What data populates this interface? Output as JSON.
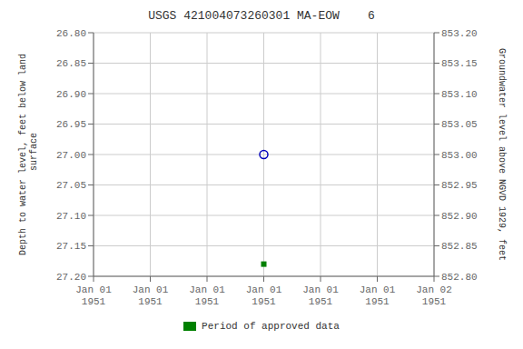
{
  "chart_data": {
    "type": "scatter",
    "title": "USGS 421004073260301 MA-EOW    6",
    "ylabel": "Depth to water level, feet below land\n surface",
    "y2label": "Groundwater level above NGVD 1929, feet",
    "categories": [
      "Jan 01\n1951",
      "Jan 01\n1951",
      "Jan 01\n1951",
      "Jan 01\n1951",
      "Jan 01\n1951",
      "Jan 01\n1951",
      "Jan 02\n1951"
    ],
    "series": [
      {
        "color": "#0000bb",
        "marker": "circle",
        "values": [
          null,
          null,
          null,
          27.0,
          null,
          null,
          null
        ]
      },
      {
        "name": "Period of approved data",
        "color": "#008000",
        "marker": "square",
        "values": [
          null,
          null,
          null,
          27.18,
          null,
          null,
          null
        ]
      }
    ],
    "ylim": [
      27.2,
      26.8
    ],
    "yticks": [
      {
        "value": 26.8,
        "label": "26.80"
      },
      {
        "value": 26.85,
        "label": "26.85"
      },
      {
        "value": 26.9,
        "label": "26.90"
      },
      {
        "value": 26.95,
        "label": "26.95"
      },
      {
        "value": 27.0,
        "label": "27.00"
      },
      {
        "value": 27.05,
        "label": "27.05"
      },
      {
        "value": 27.1,
        "label": "27.10"
      },
      {
        "value": 27.15,
        "label": "27.15"
      },
      {
        "value": 27.2,
        "label": "27.20"
      }
    ],
    "y2lim": [
      852.8,
      853.2
    ],
    "y2ticks": [
      {
        "value": 853.2,
        "label": "853.20"
      },
      {
        "value": 853.15,
        "label": "853.15"
      },
      {
        "value": 853.1,
        "label": "853.10"
      },
      {
        "value": 853.05,
        "label": "853.05"
      },
      {
        "value": 853.0,
        "label": "853.00"
      },
      {
        "value": 852.95,
        "label": "852.95"
      },
      {
        "value": 852.9,
        "label": "852.90"
      },
      {
        "value": 852.85,
        "label": "852.85"
      },
      {
        "value": 852.8,
        "label": "852.80"
      }
    ],
    "grid": true,
    "legend": "bottom"
  }
}
